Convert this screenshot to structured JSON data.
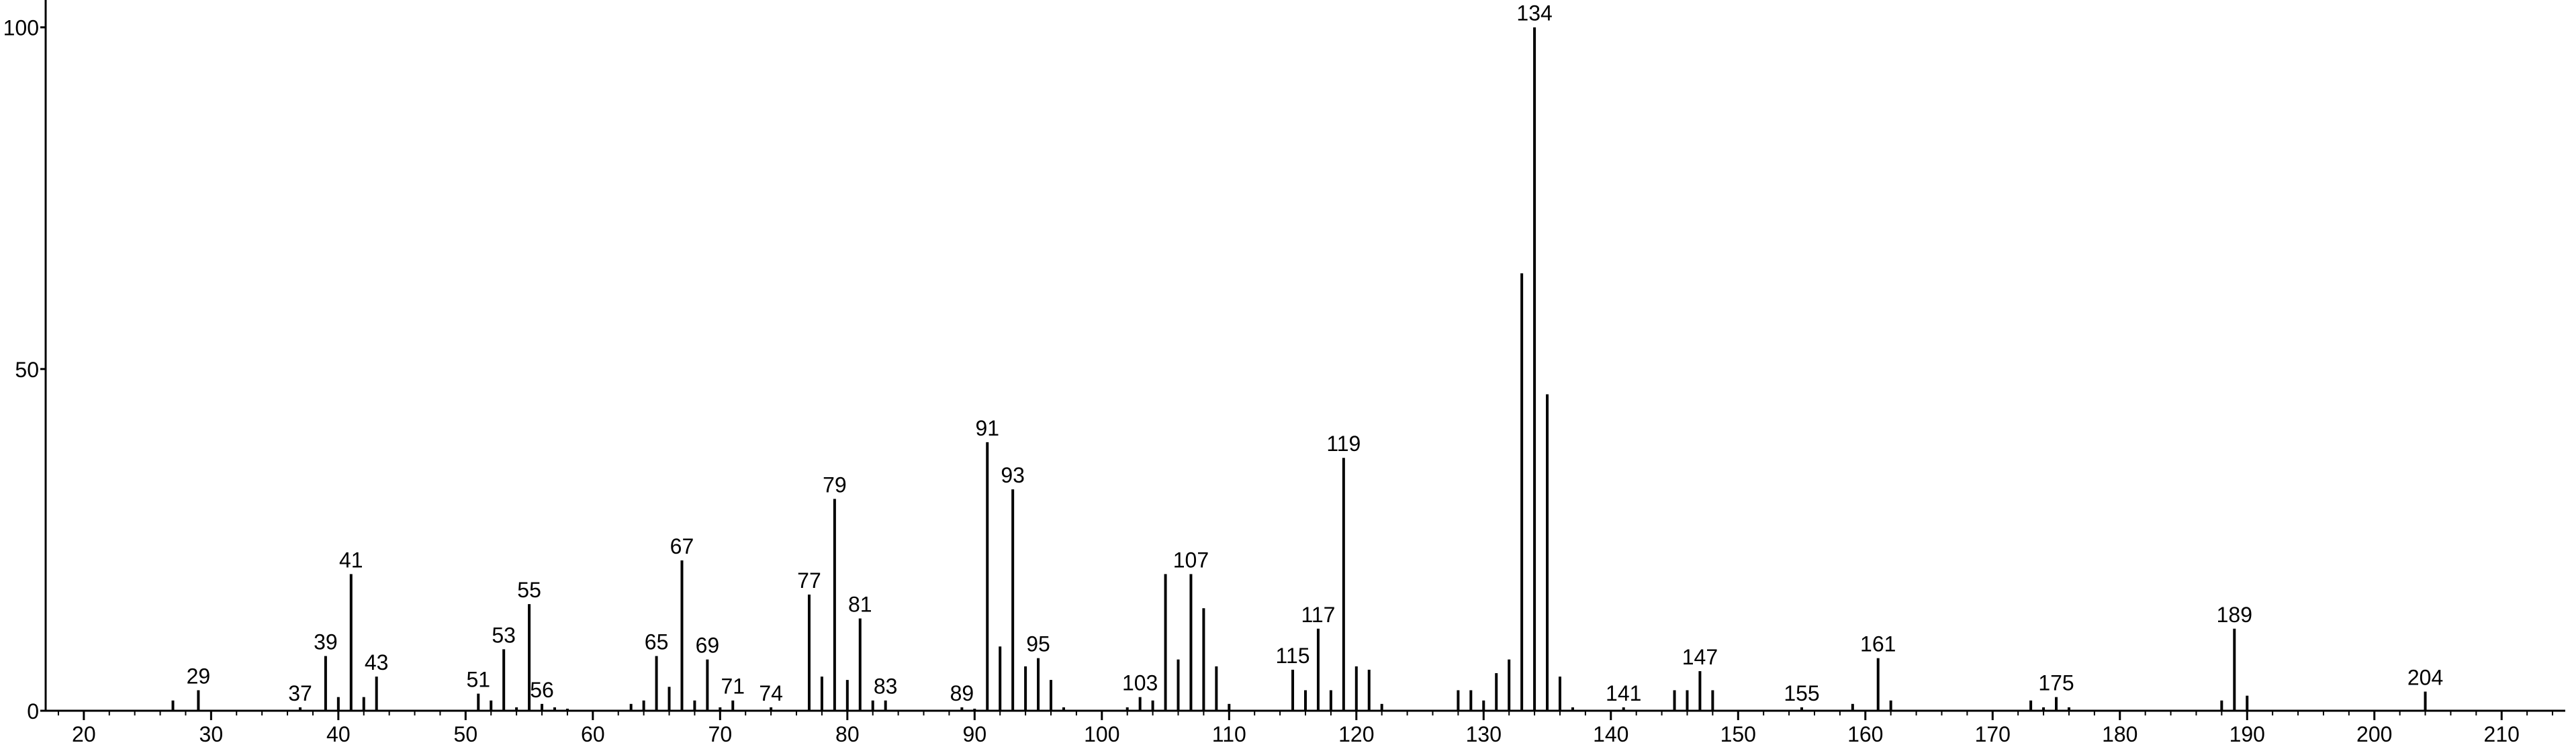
{
  "chart_data": {
    "type": "stem",
    "x": [
      27,
      29,
      37,
      39,
      40,
      41,
      42,
      43,
      51,
      52,
      53,
      54,
      55,
      56,
      57,
      58,
      63,
      64,
      65,
      66,
      67,
      68,
      69,
      70,
      71,
      74,
      77,
      78,
      79,
      80,
      81,
      82,
      83,
      89,
      90,
      91,
      92,
      93,
      94,
      95,
      96,
      97,
      102,
      103,
      104,
      105,
      106,
      107,
      108,
      109,
      110,
      115,
      116,
      117,
      118,
      119,
      120,
      121,
      122,
      128,
      129,
      130,
      131,
      132,
      133,
      134,
      135,
      136,
      137,
      141,
      145,
      146,
      147,
      148,
      155,
      159,
      161,
      162,
      173,
      174,
      175,
      176,
      188,
      189,
      190,
      204
    ],
    "values": [
      1.5,
      3,
      0.5,
      8,
      2,
      20,
      2,
      5,
      2.5,
      1.5,
      9,
      0.5,
      15.6,
      1,
      0.5,
      0.3,
      1,
      1.5,
      8,
      3.5,
      22,
      1.5,
      7.5,
      0.5,
      1.5,
      0.5,
      17,
      5,
      31,
      4.5,
      13.5,
      1.5,
      1.5,
      0.5,
      0.3,
      39.3,
      9.4,
      32.4,
      6.5,
      7.7,
      4.5,
      0.5,
      0.5,
      2,
      1.5,
      20,
      7.5,
      20,
      15,
      6.5,
      1,
      6,
      3,
      12,
      3,
      37,
      6.5,
      6,
      1,
      3,
      3,
      1.5,
      5.5,
      7.5,
      64,
      100,
      46.3,
      5,
      0.5,
      0.5,
      3,
      3,
      5.8,
      3,
      0.5,
      1,
      7.7,
      1.5,
      1.5,
      0.5,
      2,
      0.5,
      1.5,
      12,
      2.2,
      2.8
    ],
    "peak_labels": [
      29,
      37,
      39,
      41,
      43,
      51,
      53,
      55,
      56,
      65,
      67,
      69,
      71,
      74,
      77,
      79,
      81,
      83,
      89,
      91,
      93,
      95,
      103,
      107,
      115,
      117,
      119,
      134,
      141,
      147,
      155,
      161,
      175,
      189,
      204
    ],
    "color": "#000000",
    "xlim": [
      17,
      215
    ],
    "ylim": [
      0,
      104
    ],
    "xticks": [
      20,
      30,
      40,
      50,
      60,
      70,
      80,
      90,
      100,
      110,
      120,
      130,
      140,
      150,
      160,
      170,
      180,
      190,
      200,
      210
    ],
    "xminorticks": [
      18,
      22,
      24,
      26,
      28,
      32,
      34,
      36,
      38,
      42,
      44,
      46,
      48,
      52,
      54,
      56,
      58,
      62,
      64,
      66,
      68,
      72,
      74,
      76,
      78,
      82,
      84,
      86,
      88,
      92,
      94,
      96,
      98,
      102,
      104,
      106,
      108,
      112,
      114,
      116,
      118,
      122,
      124,
      126,
      128,
      132,
      134,
      136,
      138,
      142,
      144,
      146,
      148,
      152,
      154,
      156,
      158,
      162,
      164,
      166,
      168,
      172,
      174,
      176,
      178,
      182,
      184,
      186,
      188,
      192,
      194,
      196,
      198,
      202,
      204,
      206,
      208,
      212,
      214
    ],
    "yticks": [
      0,
      50,
      100
    ]
  }
}
